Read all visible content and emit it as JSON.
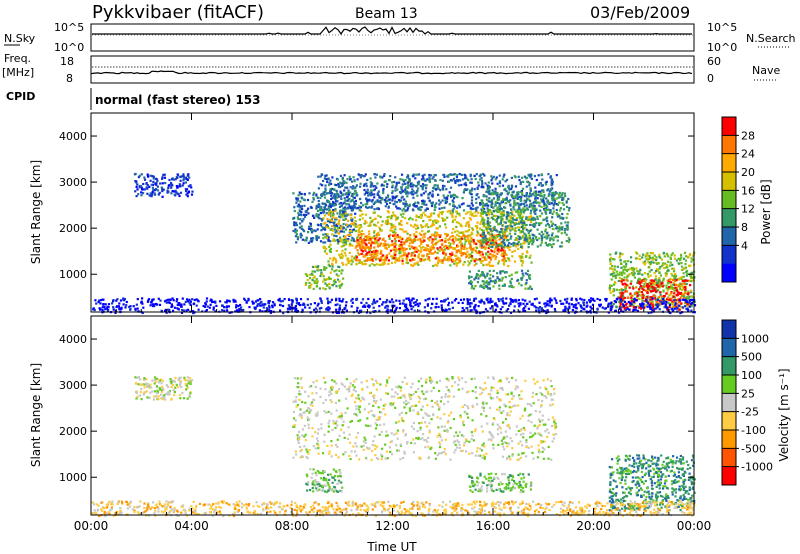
{
  "header": {
    "station": "Pykkvibaer (fitACF)",
    "beam": "Beam 13",
    "date": "03/Feb/2009"
  },
  "summary": {
    "nsky_label": "N.Sky",
    "nsky_ticks": [
      "10^5",
      "10^0"
    ],
    "nsearch_label": "N.Search",
    "nsearch_ticks": [
      "10^5",
      "10^0"
    ],
    "freq_label": "Freq.",
    "freq_unit": "[MHz]",
    "freq_ticks": [
      "18",
      "8"
    ],
    "nave_label": "Nave",
    "nave_ticks": [
      "60",
      "0"
    ],
    "cpid_label": "CPID",
    "cpid_text": "normal (fast stereo) 153"
  },
  "chart_data": [
    {
      "type": "heatmap",
      "name": "power",
      "ylabel": "Slant Range [km]",
      "yticks": [
        "4000",
        "3000",
        "2000",
        "1000"
      ],
      "yrange": [
        180,
        4500
      ],
      "xticks": [
        "00:00",
        "04:00",
        "08:00",
        "12:00",
        "16:00",
        "20:00",
        "00:00"
      ],
      "xrange_hours": [
        0,
        24
      ],
      "colorbar_label": "Power [dB]",
      "colorbar_ticks": [
        "28",
        "24",
        "20",
        "16",
        "12",
        "8",
        "4"
      ],
      "colorbar_colors": [
        "#ff0000",
        "#ff7700",
        "#ffaa00",
        "#d4c000",
        "#66bb22",
        "#339966",
        "#2266aa",
        "#1133cc",
        "#0000ff"
      ],
      "echo_regions": [
        {
          "t": [
            1.7,
            4.0
          ],
          "r": [
            2700,
            3200
          ],
          "level": 7
        },
        {
          "t": [
            8.0,
            10.5
          ],
          "r": [
            1700,
            2800
          ],
          "level": 6
        },
        {
          "t": [
            9.2,
            17.5
          ],
          "r": [
            1200,
            2400
          ],
          "level": 3
        },
        {
          "t": [
            10.5,
            16.5
          ],
          "r": [
            1300,
            1900
          ],
          "level": 1
        },
        {
          "t": [
            9.0,
            18.5
          ],
          "r": [
            2400,
            3200
          ],
          "level": 6
        },
        {
          "t": [
            15.5,
            19.0
          ],
          "r": [
            1600,
            2800
          ],
          "level": 5
        },
        {
          "t": [
            8.5,
            10.0
          ],
          "r": [
            700,
            1200
          ],
          "level": 4
        },
        {
          "t": [
            15.0,
            17.5
          ],
          "r": [
            700,
            1100
          ],
          "level": 5
        },
        {
          "t": [
            20.6,
            24.0
          ],
          "r": [
            300,
            1500
          ],
          "level": 4
        },
        {
          "t": [
            21.0,
            23.8
          ],
          "r": [
            250,
            900
          ],
          "level": 0
        },
        {
          "t": [
            0.0,
            24.0
          ],
          "r": [
            180,
            500
          ],
          "level": 8
        }
      ]
    },
    {
      "type": "heatmap",
      "name": "velocity",
      "ylabel": "Slant Range [km]",
      "yticks": [
        "4000",
        "3000",
        "2000",
        "1000"
      ],
      "yrange": [
        180,
        4500
      ],
      "xticks": [
        "00:00",
        "04:00",
        "08:00",
        "12:00",
        "16:00",
        "20:00",
        "00:00"
      ],
      "xrange_hours": [
        0,
        24
      ],
      "xlabel": "Time UT",
      "colorbar_label": "Velocity [m s⁻¹]",
      "colorbar_ticks": [
        "1000",
        "500",
        "100",
        "25",
        "-25",
        "-100",
        "-500",
        "-1000"
      ],
      "colorbar_colors": [
        "#1133aa",
        "#2266aa",
        "#339966",
        "#66cc22",
        "#c8c8c8",
        "#ffcc44",
        "#ff9900",
        "#ff5500",
        "#ff0000"
      ],
      "echo_regions": [
        {
          "t": [
            1.7,
            4.0
          ],
          "r": [
            2700,
            3200
          ],
          "level": 4
        },
        {
          "t": [
            8.0,
            18.5
          ],
          "r": [
            1400,
            3200
          ],
          "level": 4
        },
        {
          "t": [
            8.5,
            10.0
          ],
          "r": [
            700,
            1200
          ],
          "level": 3
        },
        {
          "t": [
            15.0,
            17.5
          ],
          "r": [
            700,
            1100
          ],
          "level": 3
        },
        {
          "t": [
            20.6,
            24.0
          ],
          "r": [
            300,
            1500
          ],
          "level": 2
        },
        {
          "t": [
            0.0,
            24.0
          ],
          "r": [
            180,
            500
          ],
          "level": 5
        }
      ]
    }
  ]
}
